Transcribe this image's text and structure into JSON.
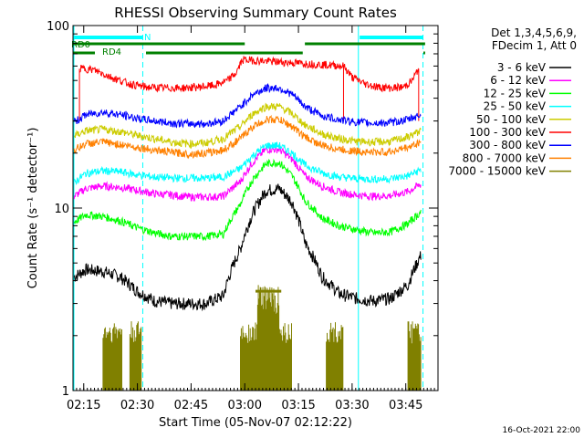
{
  "chart_data": {
    "type": "line",
    "title": "RHESSI Observing Summary Count Rates",
    "xlabel": "Start Time (05-Nov-07 02:12:22)",
    "ylabel": "Count Rate (s⁻¹ detector⁻¹)",
    "yscale": "log",
    "ylim": [
      1,
      100
    ],
    "xlim": [
      2.2,
      3.9
    ],
    "x_ticks": [
      {
        "t": 2.25,
        "label": "02:15"
      },
      {
        "t": 2.5,
        "label": "02:30"
      },
      {
        "t": 2.75,
        "label": "02:45"
      },
      {
        "t": 3.0,
        "label": "03:00"
      },
      {
        "t": 3.25,
        "label": "03:15"
      },
      {
        "t": 3.5,
        "label": "03:30"
      },
      {
        "t": 3.75,
        "label": "03:45"
      }
    ],
    "y_ticks": [
      {
        "v": 1,
        "label": "1"
      },
      {
        "v": 10,
        "label": "10"
      },
      {
        "v": 100,
        "label": "100"
      }
    ],
    "legend": {
      "placement": "top-right",
      "header": [
        "Det 1,3,4,5,6,9,",
        "FDecim 1, Att 0"
      ]
    },
    "series": [
      {
        "name": "3 - 6 keV",
        "color": "#000000",
        "x": [
          2.18,
          2.26,
          2.34,
          2.42,
          2.5,
          2.58,
          2.66,
          2.74,
          2.82,
          2.9,
          2.98,
          3.04,
          3.1,
          3.16,
          3.22,
          3.28,
          3.36,
          3.44,
          3.52,
          3.6,
          3.68,
          3.76,
          3.82
        ],
        "y": [
          4,
          4.6,
          4.5,
          4.2,
          3.5,
          3.1,
          3.0,
          3.0,
          3.0,
          3.3,
          6,
          9.5,
          12.5,
          12.8,
          10.8,
          6.5,
          4.2,
          3.4,
          3.2,
          3.1,
          3.2,
          3.8,
          5.5
        ]
      },
      {
        "name": "6 - 12 keV",
        "color": "#ff00ff",
        "x": [
          2.18,
          2.26,
          2.34,
          2.42,
          2.5,
          2.58,
          2.66,
          2.74,
          2.82,
          2.9,
          2.98,
          3.04,
          3.1,
          3.16,
          3.22,
          3.28,
          3.36,
          3.44,
          3.52,
          3.6,
          3.68,
          3.76,
          3.82
        ],
        "y": [
          11,
          12.8,
          13.2,
          13.0,
          12.5,
          12.0,
          11.8,
          11.5,
          11.5,
          11.6,
          14,
          18,
          21,
          21,
          18.5,
          15,
          13.2,
          12.2,
          11.8,
          11.6,
          11.7,
          12.3,
          13.5
        ]
      },
      {
        "name": "12 - 25 keV",
        "color": "#00ff00",
        "x": [
          2.18,
          2.26,
          2.34,
          2.42,
          2.5,
          2.58,
          2.66,
          2.74,
          2.82,
          2.9,
          2.98,
          3.04,
          3.1,
          3.16,
          3.22,
          3.28,
          3.36,
          3.44,
          3.52,
          3.6,
          3.68,
          3.76,
          3.82
        ],
        "y": [
          8,
          9.2,
          9.0,
          8.5,
          7.8,
          7.3,
          7.0,
          7.0,
          7.0,
          7.2,
          10.5,
          14.5,
          17.5,
          17.8,
          15.0,
          11.0,
          8.8,
          8.0,
          7.6,
          7.3,
          7.4,
          8.2,
          9.5
        ]
      },
      {
        "name": "25 - 50 keV",
        "color": "#00ffff",
        "x": [
          2.18,
          2.26,
          2.34,
          2.42,
          2.5,
          2.58,
          2.66,
          2.74,
          2.82,
          2.9,
          2.98,
          3.04,
          3.1,
          3.16,
          3.22,
          3.28,
          3.36,
          3.44,
          3.52,
          3.6,
          3.68,
          3.76,
          3.82
        ],
        "y": [
          13,
          15.5,
          16.0,
          15.8,
          15.2,
          14.8,
          14.6,
          14.6,
          14.6,
          14.8,
          16.5,
          19.5,
          22.0,
          22.0,
          20.0,
          17.2,
          15.6,
          14.8,
          14.5,
          14.4,
          14.5,
          15.0,
          16.2
        ]
      },
      {
        "name": "50 - 100 keV",
        "color": "#cccc00",
        "x": [
          2.18,
          2.26,
          2.34,
          2.42,
          2.5,
          2.58,
          2.66,
          2.74,
          2.82,
          2.9,
          2.98,
          3.04,
          3.1,
          3.16,
          3.22,
          3.28,
          3.36,
          3.44,
          3.52,
          3.6,
          3.68,
          3.76,
          3.82
        ],
        "y": [
          24,
          26.5,
          27.0,
          26.2,
          25.0,
          24.0,
          23.0,
          22.5,
          22.8,
          24.0,
          28.0,
          33.0,
          36.0,
          36.0,
          33.0,
          28.5,
          25.5,
          24.0,
          23.2,
          23.0,
          23.2,
          24.5,
          26.5
        ]
      },
      {
        "name": "100 - 300 keV",
        "color": "#ff0000",
        "x": [
          2.18,
          2.2,
          2.23,
          2.26,
          2.3,
          2.38,
          2.46,
          2.54,
          2.62,
          2.7,
          2.78,
          2.86,
          2.92,
          2.96,
          2.99,
          3.46,
          3.5,
          3.56,
          3.62,
          3.68,
          3.74,
          3.78,
          3.81,
          3.84
        ],
        "y": [
          null,
          null,
          58,
          58,
          57,
          52,
          48,
          46,
          45.5,
          45.5,
          46,
          47,
          50,
          55,
          65,
          60,
          52,
          48,
          46,
          45.5,
          46,
          50,
          58,
          null
        ]
      },
      {
        "name": "300 - 800 keV",
        "color": "#0000ff",
        "x": [
          2.18,
          2.26,
          2.34,
          2.42,
          2.5,
          2.58,
          2.66,
          2.74,
          2.82,
          2.9,
          2.98,
          3.04,
          3.1,
          3.16,
          3.22,
          3.28,
          3.36,
          3.44,
          3.52,
          3.6,
          3.68,
          3.76,
          3.82
        ],
        "y": [
          28,
          32.5,
          33.5,
          32.5,
          31.0,
          30.0,
          29.2,
          29.0,
          29.0,
          30.0,
          36.0,
          42.0,
          45.5,
          45.5,
          42.0,
          36.0,
          32.0,
          30.5,
          29.6,
          29.2,
          29.4,
          30.5,
          32.5
        ]
      },
      {
        "name": "800 - 7000 keV",
        "color": "#ff8000",
        "x": [
          2.18,
          2.26,
          2.34,
          2.42,
          2.5,
          2.58,
          2.66,
          2.74,
          2.82,
          2.9,
          2.98,
          3.04,
          3.1,
          3.16,
          3.22,
          3.28,
          3.36,
          3.44,
          3.52,
          3.6,
          3.68,
          3.76,
          3.82
        ],
        "y": [
          20,
          22.5,
          23.0,
          22.3,
          21.5,
          20.8,
          20.2,
          19.8,
          20.0,
          20.8,
          24.0,
          28.0,
          30.5,
          30.5,
          28.0,
          24.5,
          22.0,
          21.0,
          20.5,
          20.2,
          20.4,
          21.5,
          23.0
        ]
      },
      {
        "name": "7000 - 15000 keV",
        "color": "#808000",
        "x": [
          3.08,
          3.11,
          3.14
        ],
        "y": [
          3.5,
          3.8,
          3.5
        ]
      }
    ],
    "annotations": [
      {
        "text": "RD0",
        "color": "#008000"
      },
      {
        "text": "RD4",
        "color": "#008000"
      },
      {
        "text": "N",
        "color": "#00ffff"
      }
    ]
  },
  "footer": {
    "timestamp": "16-Oct-2021 22:00"
  }
}
